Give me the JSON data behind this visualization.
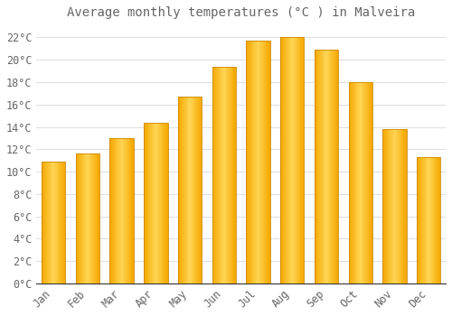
{
  "title": "Average monthly temperatures (°C ) in Malveira",
  "months": [
    "Jan",
    "Feb",
    "Mar",
    "Apr",
    "May",
    "Jun",
    "Jul",
    "Aug",
    "Sep",
    "Oct",
    "Nov",
    "Dec"
  ],
  "values": [
    10.9,
    11.6,
    13.0,
    14.4,
    16.7,
    19.4,
    21.7,
    22.0,
    20.9,
    18.0,
    13.8,
    11.3
  ],
  "bar_color_center": "#FFD555",
  "bar_color_edge": "#F5A800",
  "bar_outline_color": "#CC8800",
  "background_color": "#FFFFFF",
  "grid_color": "#E0E0E0",
  "text_color": "#666666",
  "ylim": [
    0,
    23
  ],
  "ytick_step": 2,
  "title_fontsize": 10,
  "tick_fontsize": 8.5,
  "font_family": "monospace"
}
